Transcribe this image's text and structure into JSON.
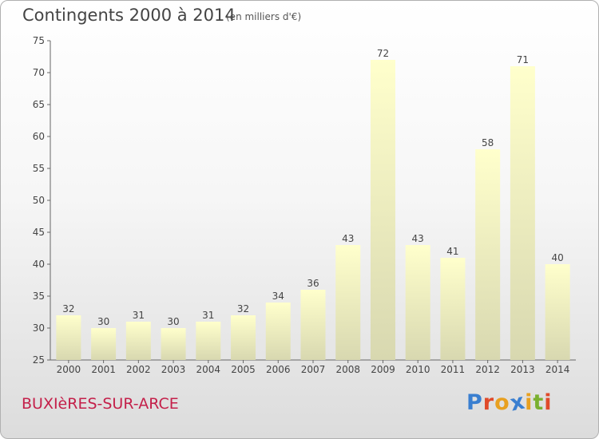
{
  "header": {
    "title": "Contingents 2000 à 2014",
    "subtitle": "(en milliers d'€)"
  },
  "footer": {
    "commune": "BUXIèRES-SUR-ARCE",
    "logo_text": "Proxiti",
    "logo_colors": [
      "#3a7fd0",
      "#e04a2a",
      "#e8a020",
      "#3a7fd0",
      "#e8a020",
      "#7ab030",
      "#e04a2a"
    ]
  },
  "chart_data": {
    "type": "bar",
    "categories": [
      "2000",
      "2001",
      "2002",
      "2003",
      "2004",
      "2005",
      "2006",
      "2007",
      "2008",
      "2009",
      "2010",
      "2011",
      "2012",
      "2013",
      "2014"
    ],
    "values": [
      32,
      30,
      31,
      30,
      31,
      32,
      34,
      36,
      43,
      72,
      43,
      41,
      58,
      71,
      40
    ],
    "ylim": [
      25,
      75
    ],
    "yticks": [
      25,
      30,
      35,
      40,
      45,
      50,
      55,
      60,
      65,
      70,
      75
    ],
    "grid": false,
    "bar_color_top": "#ffffcc",
    "bar_color_bottom": "#d8d8b0"
  }
}
